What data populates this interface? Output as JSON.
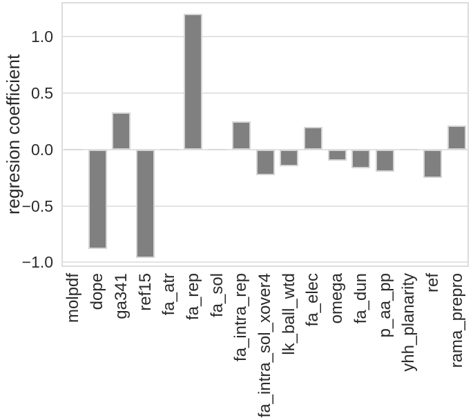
{
  "chart_data": {
    "type": "bar",
    "title": "",
    "xlabel": "",
    "ylabel": "regresion coefficient",
    "categories": [
      "molpdf",
      "dope",
      "ga341",
      "ref15",
      "fa_atr",
      "fa_rep",
      "fa_sol",
      "fa_intra_rep",
      "fa_intra_sol_xover4",
      "lk_ball_wtd",
      "fa_elec",
      "omega",
      "fa_dun",
      "p_aa_pp",
      "yhh_planarity",
      "ref",
      "rama_prepro"
    ],
    "values": [
      0,
      -0.88,
      0.33,
      -0.96,
      0,
      1.2,
      0,
      0.25,
      -0.23,
      -0.15,
      0.2,
      -0.1,
      -0.17,
      -0.2,
      0,
      -0.25,
      0.21
    ],
    "ylim": [
      -1.04,
      1.305
    ],
    "yticks": [
      1.0,
      0.5,
      0.0,
      -0.5,
      -1.0
    ],
    "ytick_labels": [
      "1.0",
      "0.5",
      "0.0",
      "−0.5",
      "−1.0"
    ],
    "grid": true,
    "legend_position": "none",
    "bar_color": "#808080",
    "bar_edge_color": "#d4d4d4",
    "grid_color": "#e3e3e3",
    "axis_border_color": "#dcdcdc",
    "text_color": "#2a2a2a",
    "background_color": "#ffffff"
  }
}
